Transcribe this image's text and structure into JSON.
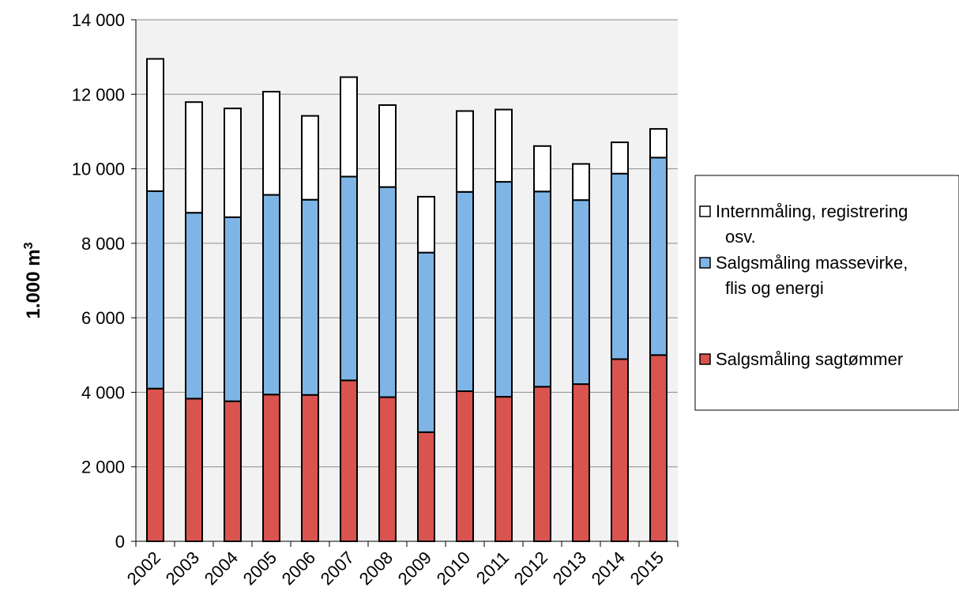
{
  "chart_data": {
    "type": "bar",
    "stacked": true,
    "categories": [
      "2002",
      "2003",
      "2004",
      "2005",
      "2006",
      "2007",
      "2008",
      "2009",
      "2010",
      "2011",
      "2012",
      "2013",
      "2014",
      "2015"
    ],
    "series": [
      {
        "name": "Salgsmåling sagtømmer",
        "color": "#d9534f",
        "values": [
          4100,
          3830,
          3760,
          3940,
          3930,
          4320,
          3870,
          2930,
          4030,
          3880,
          4150,
          4220,
          4890,
          5000
        ]
      },
      {
        "name": "Salgsmåling massevirke, flis og energi",
        "color": "#7fb5e6",
        "values": [
          5300,
          4990,
          4940,
          5360,
          5240,
          5470,
          5640,
          4820,
          5350,
          5770,
          5240,
          4940,
          4980,
          5300
        ]
      },
      {
        "name": "Internmåling, registrering osv.",
        "color": "#ffffff",
        "values": [
          3550,
          2970,
          2920,
          2770,
          2250,
          2670,
          2200,
          1500,
          2170,
          1940,
          1220,
          970,
          840,
          770
        ]
      }
    ],
    "ylabel_main": "1.000 m",
    "ylabel_sup": "3",
    "ylim": [
      0,
      14000
    ],
    "yticks": [
      0,
      2000,
      4000,
      6000,
      8000,
      10000,
      12000,
      14000
    ],
    "ytick_labels": [
      "0",
      "2 000",
      "4 000",
      "6 000",
      "8 000",
      "10 000",
      "12 000",
      "14 000"
    ],
    "grid": true,
    "legend_position": "right",
    "legend_lines": [
      [
        "Internmåling, registrering",
        "osv."
      ],
      [
        "Salgsmåling massevirke,",
        "flis og energi"
      ],
      [
        "Salgsmåling sagtømmer"
      ]
    ]
  }
}
